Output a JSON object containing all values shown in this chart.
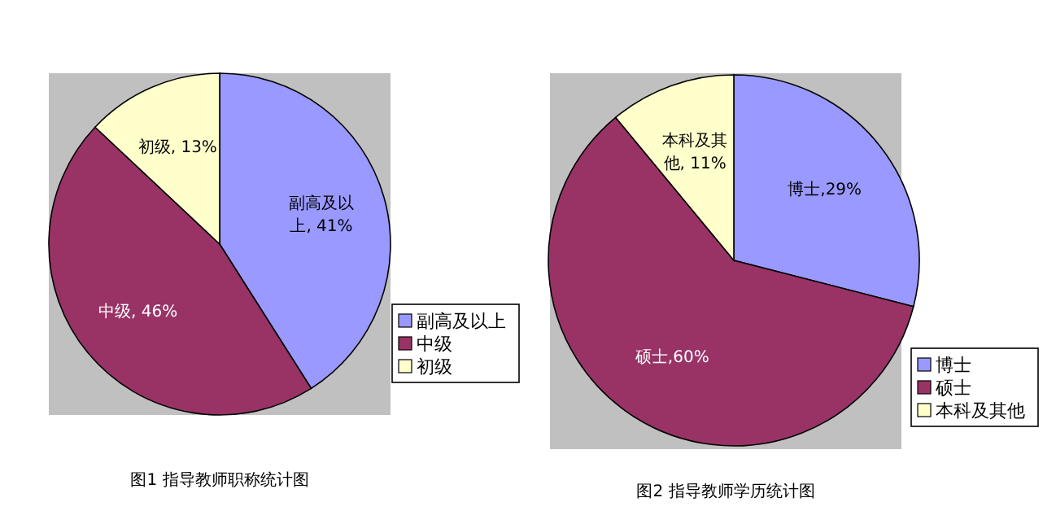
{
  "chart_data": [
    {
      "type": "pie",
      "categories": [
        "副高及以上",
        "中级",
        "初级"
      ],
      "values": [
        41,
        46,
        13
      ],
      "colors": [
        "#9999ff",
        "#993366",
        "#ffffcc"
      ],
      "value_labels": [
        "副高及以上, 41%",
        "中级, 46%",
        "初级, 13%"
      ],
      "legend": "bottom right",
      "annotations": [
        "图1  指导教师职称统计图"
      ]
    },
    {
      "type": "pie",
      "categories": [
        "博士",
        "硕士",
        "本科及其他"
      ],
      "values": [
        29,
        60,
        11
      ],
      "colors": [
        "#9999ff",
        "#993366",
        "#ffffcc"
      ],
      "value_labels": [
        "博士,29%",
        "硕士,60%",
        "本科及其他, 11%"
      ],
      "legend": "bottom right",
      "annotations": [
        "图2  指导教师学历统计图"
      ]
    }
  ]
}
